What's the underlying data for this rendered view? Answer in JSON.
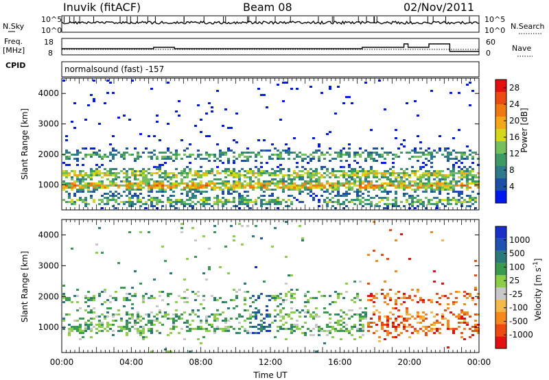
{
  "header": {
    "title": "Inuvik (fitACF)",
    "beam": "Beam 08",
    "date": "02/Nov/2011"
  },
  "panels": {
    "noise": {
      "left_label": "N.Sky",
      "right_label": "N.Search",
      "left_ticks": [
        "10^5",
        "10^0"
      ],
      "right_ticks": [
        "10^5",
        "10^0"
      ]
    },
    "freq": {
      "left_label_top": "Freq.",
      "left_label_unit": "[MHz]",
      "right_label": "Nave",
      "left_ticks": [
        "18",
        "8"
      ],
      "right_ticks": [
        "60",
        "0"
      ]
    },
    "cpid": {
      "left_label": "CPID",
      "text": "normalsound (fast) -157"
    }
  },
  "chart_data": [
    {
      "type": "heatmap",
      "title": "",
      "ylabel": "Slant Range [km]",
      "xlabel": "",
      "y_ticks": [
        1000,
        2000,
        3000,
        4000
      ],
      "ylim": [
        180,
        4500
      ],
      "colorbar": {
        "label": "Power [dB]",
        "ticks": [
          4,
          8,
          12,
          16,
          20,
          24,
          28
        ],
        "range": [
          0,
          30
        ],
        "colors": [
          "#0018f0",
          "#1c4fa8",
          "#2d7a8c",
          "#3e9a64",
          "#74c05a",
          "#d6d61c",
          "#f3a81a",
          "#f07a12",
          "#ec4a10",
          "#e41010"
        ]
      },
      "bands": [
        {
          "y": 1000,
          "level": 0.85
        },
        {
          "y": 1400,
          "level": 0.7
        },
        {
          "y": 2000,
          "level": 0.5
        },
        {
          "y": 500,
          "level": 0.6
        }
      ]
    },
    {
      "type": "heatmap",
      "title": "",
      "ylabel": "Slant Range [km]",
      "xlabel": "Time UT",
      "x_ticks": [
        "00:00",
        "04:00",
        "08:00",
        "12:00",
        "16:00",
        "20:00",
        "00:00"
      ],
      "y_ticks": [
        1000,
        2000,
        3000,
        4000
      ],
      "ylim": [
        180,
        4500
      ],
      "colorbar": {
        "label": "Velocity [m s^-1]",
        "ticks": [
          1000,
          500,
          100,
          25,
          -25,
          -100,
          -500,
          -1000
        ],
        "range": [
          -1000,
          1000
        ],
        "colors": [
          "#e41010",
          "#ec4a10",
          "#f58a1a",
          "#f5b84a",
          "#c8c8c8",
          "#8ccf46",
          "#3a9a50",
          "#2a7a7a",
          "#2050b0",
          "#1830c8"
        ]
      },
      "bands": [
        {
          "y": 1000,
          "level": 0.5
        },
        {
          "y": 1400,
          "level": 0.4
        },
        {
          "y": 2000,
          "level": 0.3
        }
      ]
    }
  ],
  "colors": {
    "axis": "#000000",
    "dotted": "#000000"
  }
}
